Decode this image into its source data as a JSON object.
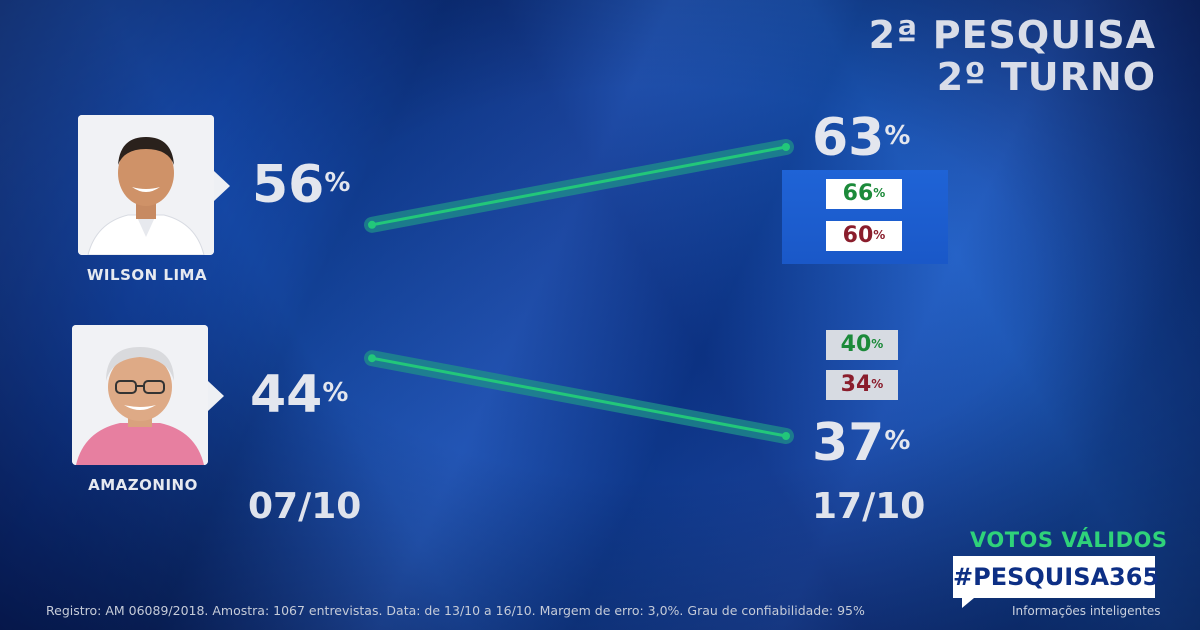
{
  "header": {
    "title_line1": "2ª PESQUISA",
    "title_line2": "2º TURNO"
  },
  "chart_data": {
    "type": "line",
    "x": [
      "07/10",
      "17/10"
    ],
    "series": [
      {
        "name": "WILSON LIMA",
        "values": [
          56,
          63
        ],
        "range_at_last": {
          "high": 66,
          "low": 60
        },
        "color": "#22c77a"
      },
      {
        "name": "AMAZONINO",
        "values": [
          44,
          37
        ],
        "range_at_last": {
          "high": 40,
          "low": 34
        },
        "color": "#22c77a"
      }
    ],
    "value_unit": "%",
    "range_colors": {
      "high": "#1c8a3a",
      "low": "#8a1d2c"
    }
  },
  "labels": {
    "wilson_start": "56",
    "wilson_end": "63",
    "wilson_high": "66",
    "wilson_low": "60",
    "amazonino_start": "44",
    "amazonino_end": "37",
    "amazonino_high": "40",
    "amazonino_low": "34",
    "percent_sign": "%"
  },
  "candidates": {
    "first": {
      "name": "WILSON LIMA",
      "photo_icon": "candidate-photo-wilson"
    },
    "second": {
      "name": "AMAZONINO",
      "photo_icon": "candidate-photo-amazonino"
    }
  },
  "dates": {
    "start": "07/10",
    "end": "17/10"
  },
  "branding": {
    "votes_label": "VOTOS VÁLIDOS",
    "hashtag": "#PESQUISA365",
    "tagline": "Informações inteligentes"
  },
  "footnote": "Registro: AM 06089/2018. Amostra: 1067 entrevistas. Data: de 13/10 a 16/10. Margem de erro: 3,0%. Grau de confiabilidade: 95%"
}
